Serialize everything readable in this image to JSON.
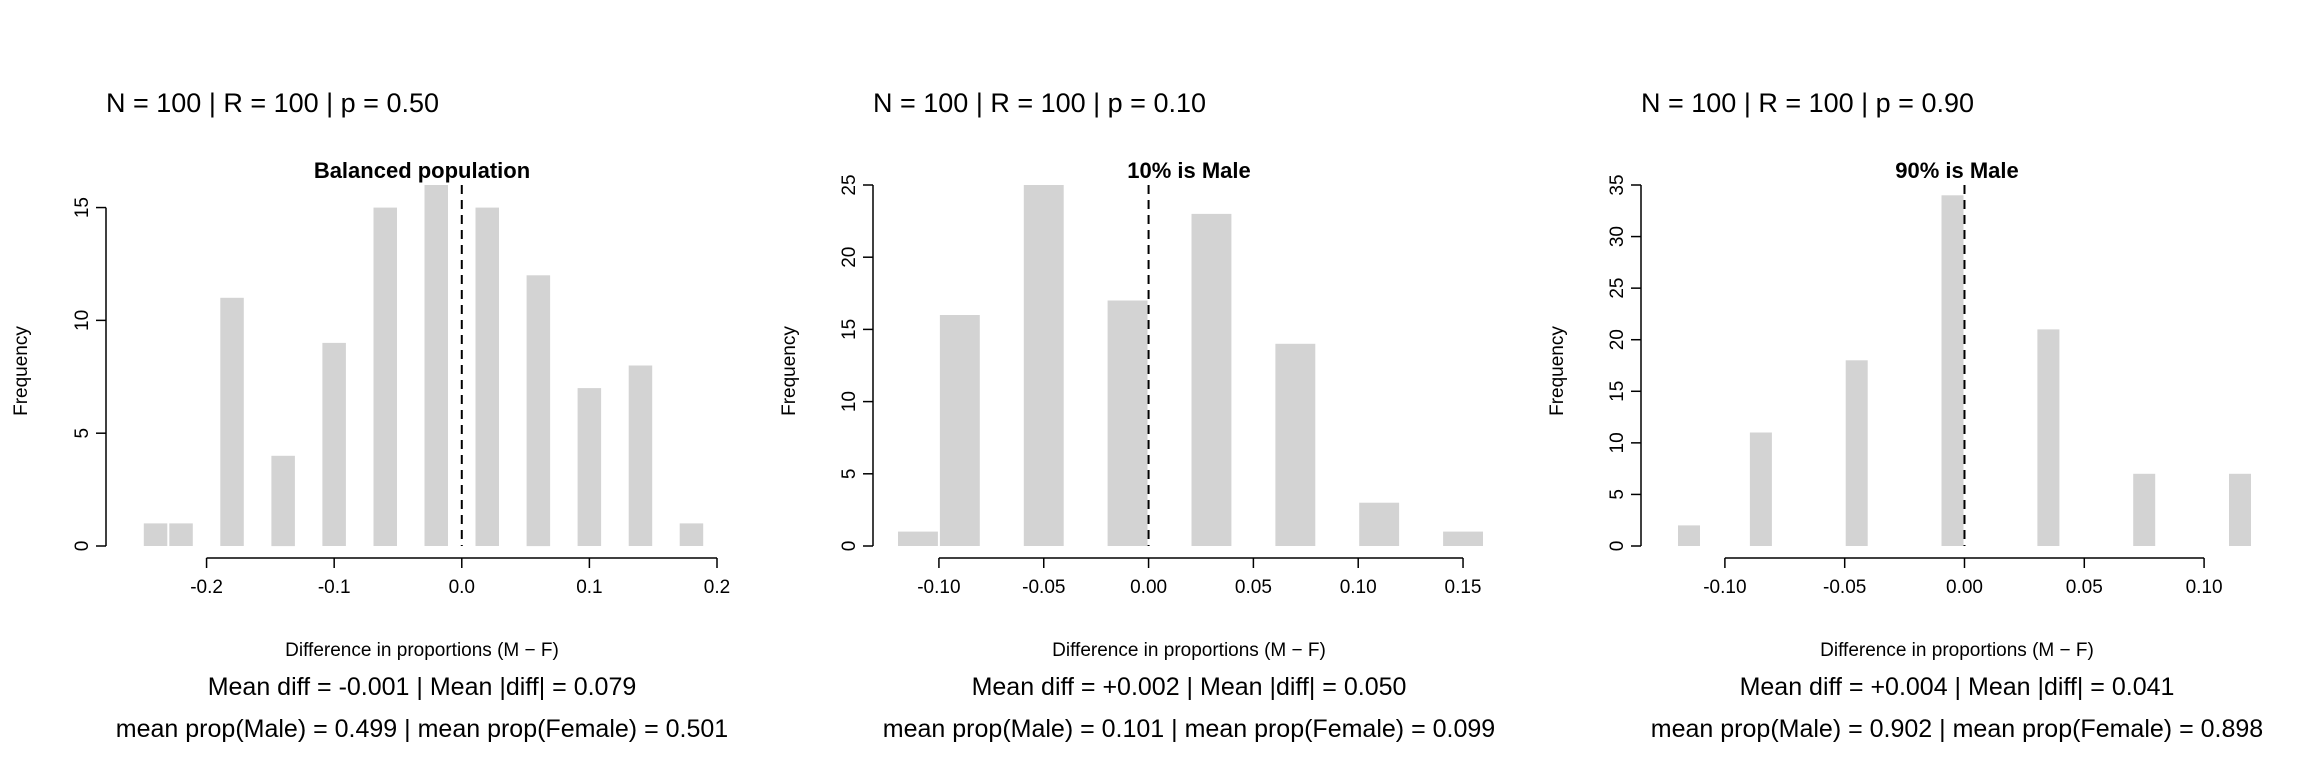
{
  "panels": [
    {
      "header": "N = 100 | R = 100 | p = 0.50",
      "stats_line1": "Mean diff = -0.001 | Mean |diff| = 0.079",
      "stats_line2": "mean prop(Male) = 0.499 | mean prop(Female) = 0.501"
    },
    {
      "header": "N = 100 | R = 100 | p = 0.10",
      "stats_line1": "Mean diff = +0.002 | Mean |diff| = 0.050",
      "stats_line2": "mean prop(Male) = 0.101 | mean prop(Female) = 0.099"
    },
    {
      "header": "N = 100 | R = 100 | p = 0.90",
      "stats_line1": "Mean diff = +0.004 | Mean |diff| = 0.041",
      "stats_line2": "mean prop(Male) = 0.902 | mean prop(Female) = 0.898"
    }
  ],
  "chart_data": [
    {
      "type": "bar",
      "title": "Balanced population",
      "xlabel": "Difference in proportions (M − F)",
      "ylabel": "Frequency",
      "xlim": [
        -0.26,
        0.2
      ],
      "ylim": [
        0,
        16
      ],
      "xticks": [
        -0.2,
        -0.1,
        0.0,
        0.1,
        0.2
      ],
      "xtick_labels": [
        "-0.2",
        "-0.1",
        "0.0",
        "0.1",
        "0.2"
      ],
      "yticks": [
        0,
        5,
        10,
        15
      ],
      "bin_width": 0.02,
      "bins": [
        {
          "x": -0.24,
          "count": 1
        },
        {
          "x": -0.22,
          "count": 1
        },
        {
          "x": -0.18,
          "count": 11
        },
        {
          "x": -0.14,
          "count": 4
        },
        {
          "x": -0.1,
          "count": 9
        },
        {
          "x": -0.06,
          "count": 15
        },
        {
          "x": -0.02,
          "count": 16
        },
        {
          "x": 0.02,
          "count": 15
        },
        {
          "x": 0.06,
          "count": 12
        },
        {
          "x": 0.1,
          "count": 7
        },
        {
          "x": 0.14,
          "count": 8
        },
        {
          "x": 0.18,
          "count": 1
        }
      ],
      "reference_line": 0.0,
      "bar_color": "#d3d3d3"
    },
    {
      "type": "bar",
      "title": "10% is Male",
      "xlabel": "Difference in proportions (M − F)",
      "ylabel": "Frequency",
      "xlim": [
        -0.12,
        0.16
      ],
      "ylim": [
        0,
        25
      ],
      "xticks": [
        -0.1,
        -0.05,
        0.0,
        0.05,
        0.1,
        0.15
      ],
      "xtick_labels": [
        "-0.10",
        "-0.05",
        "0.00",
        "0.05",
        "0.10",
        "0.15"
      ],
      "yticks": [
        0,
        5,
        10,
        15,
        20,
        25
      ],
      "bin_width": 0.02,
      "bins": [
        {
          "x": -0.11,
          "count": 1
        },
        {
          "x": -0.09,
          "count": 16
        },
        {
          "x": -0.05,
          "count": 25
        },
        {
          "x": -0.01,
          "count": 17
        },
        {
          "x": 0.03,
          "count": 23
        },
        {
          "x": 0.07,
          "count": 14
        },
        {
          "x": 0.11,
          "count": 3
        },
        {
          "x": 0.15,
          "count": 1
        }
      ],
      "reference_line": 0.0,
      "bar_color": "#d3d3d3"
    },
    {
      "type": "bar",
      "title": "90% is Male",
      "xlabel": "Difference in proportions (M − F)",
      "ylabel": "Frequency",
      "xlim": [
        -0.125,
        0.12
      ],
      "ylim": [
        0,
        35
      ],
      "xticks": [
        -0.1,
        -0.05,
        0.0,
        0.05,
        0.1
      ],
      "xtick_labels": [
        "-0.10",
        "-0.05",
        "0.00",
        "0.05",
        "0.10"
      ],
      "yticks": [
        0,
        5,
        10,
        15,
        20,
        25,
        30,
        35
      ],
      "bin_width": 0.01,
      "bins": [
        {
          "x": -0.115,
          "count": 2
        },
        {
          "x": -0.085,
          "count": 11
        },
        {
          "x": -0.045,
          "count": 18
        },
        {
          "x": -0.005,
          "count": 34
        },
        {
          "x": 0.035,
          "count": 21
        },
        {
          "x": 0.075,
          "count": 7
        },
        {
          "x": 0.115,
          "count": 7
        }
      ],
      "reference_line": 0.0,
      "bar_color": "#d3d3d3"
    }
  ]
}
